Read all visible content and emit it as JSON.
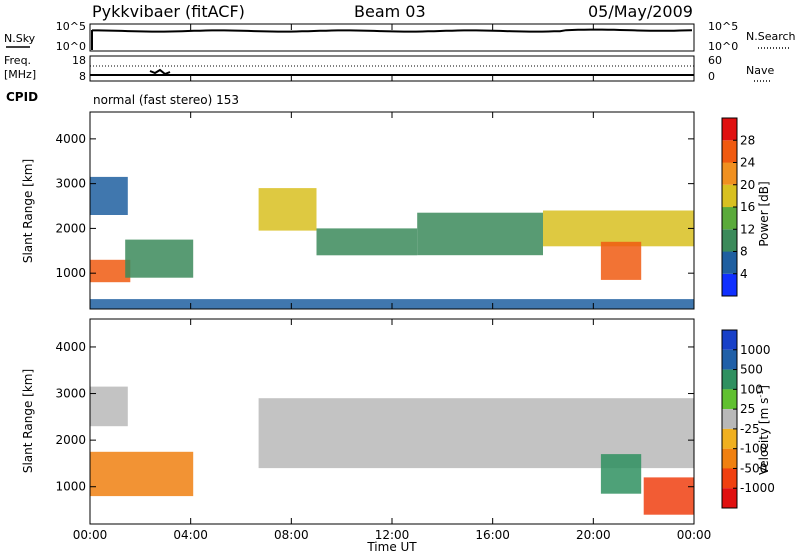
{
  "header": {
    "station": "Pykkvibaer (fitACF)",
    "beam": "Beam 03",
    "date": "05/May/2009"
  },
  "noise_panel": {
    "left_label": "N.Sky",
    "right_label": "N.Search",
    "ticks_left": [
      "10^5",
      "10^0"
    ],
    "ticks_right": [
      "10^5",
      "10^0"
    ]
  },
  "freq_panel": {
    "left_label": "Freq.",
    "left_unit": "[MHz]",
    "right_label": "Nave",
    "ticks_left": [
      "18",
      "8"
    ],
    "ticks_right": [
      "60",
      "0"
    ]
  },
  "cpid": {
    "label": "CPID",
    "value": "normal (fast stereo) 153"
  },
  "colors": {
    "power": [
      "#1030ff",
      "#1f5fa0",
      "#3b8a5a",
      "#5aaa3a",
      "#d8c020",
      "#f09020",
      "#f05a10",
      "#e01010"
    ],
    "velocity": [
      "#1840c8",
      "#2060a8",
      "#2f9060",
      "#60c030",
      "#b8b8b8",
      "#f0b020",
      "#f08010",
      "#f04010",
      "#e01010"
    ]
  },
  "chart_data": [
    {
      "type": "heatmap",
      "panel": "power",
      "ylabel": "Slant Range [km]",
      "yticks": [
        "1000",
        "2000",
        "3000",
        "4000"
      ],
      "ylim": [
        200,
        4600
      ],
      "x_range_hours": [
        0,
        24
      ],
      "colorbar": {
        "label": "Power [dB]",
        "ticks": [
          "4",
          "8",
          "12",
          "16",
          "20",
          "24",
          "28"
        ],
        "range": [
          0,
          32
        ]
      },
      "features": [
        {
          "start_hour": 0.0,
          "end_hour": 1.5,
          "range_km": [
            2300,
            3150
          ],
          "level": 0.2
        },
        {
          "start_hour": 0.0,
          "end_hour": 1.6,
          "range_km": [
            800,
            1300
          ],
          "level": 0.75
        },
        {
          "start_hour": 1.4,
          "end_hour": 4.1,
          "range_km": [
            900,
            1750
          ],
          "level": 0.3
        },
        {
          "start_hour": 6.7,
          "end_hour": 9.0,
          "range_km": [
            1950,
            2900
          ],
          "level": 0.5
        },
        {
          "start_hour": 9.0,
          "end_hour": 13.0,
          "range_km": [
            1400,
            2000
          ],
          "level": 0.35
        },
        {
          "start_hour": 13.0,
          "end_hour": 18.0,
          "range_km": [
            1400,
            2350
          ],
          "level": 0.35
        },
        {
          "start_hour": 18.0,
          "end_hour": 24.0,
          "range_km": [
            1600,
            2400
          ],
          "level": 0.6
        },
        {
          "start_hour": 20.3,
          "end_hour": 21.9,
          "range_km": [
            850,
            1700
          ],
          "level": 0.85
        },
        {
          "start_hour": 0.0,
          "end_hour": 24.0,
          "range_km": [
            200,
            420
          ],
          "level": 0.15
        }
      ]
    },
    {
      "type": "heatmap",
      "panel": "velocity",
      "ylabel": "Slant Range [km]",
      "yticks": [
        "1000",
        "2000",
        "3000",
        "4000"
      ],
      "ylim": [
        200,
        4600
      ],
      "x_range_hours": [
        0,
        24
      ],
      "xticks": [
        "00:00",
        "04:00",
        "08:00",
        "12:00",
        "16:00",
        "20:00",
        "00:00"
      ],
      "xlabel": "Time UT",
      "colorbar": {
        "label": "Velocity [m s",
        "label_sup": "-1",
        "label_end": "]",
        "ticks": [
          "1000",
          "500",
          "100",
          "25",
          "-25",
          "-100",
          "-500",
          "-1000"
        ]
      },
      "features": [
        {
          "start_hour": 0.0,
          "end_hour": 1.5,
          "range_km": [
            2300,
            3150
          ],
          "velocity_m_s": 0
        },
        {
          "start_hour": 0.0,
          "end_hour": 4.1,
          "range_km": [
            800,
            1750
          ],
          "velocity_m_s": -300
        },
        {
          "start_hour": 6.7,
          "end_hour": 24.0,
          "range_km": [
            1400,
            2900
          ],
          "velocity_m_s": 0
        },
        {
          "start_hour": 20.3,
          "end_hour": 21.9,
          "range_km": [
            850,
            1700
          ],
          "velocity_m_s": 200
        },
        {
          "start_hour": 22.0,
          "end_hour": 24.0,
          "range_km": [
            400,
            1200
          ],
          "velocity_m_s": -600
        }
      ]
    }
  ]
}
